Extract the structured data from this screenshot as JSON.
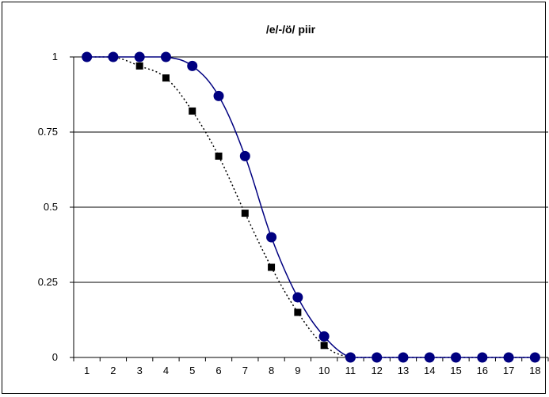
{
  "chart_data": {
    "type": "line",
    "title": "/e/-/ö/ piir",
    "xlabel": "",
    "ylabel": "",
    "categories": [
      "1",
      "2",
      "3",
      "4",
      "5",
      "6",
      "7",
      "8",
      "9",
      "10",
      "11",
      "12",
      "13",
      "14",
      "15",
      "16",
      "17",
      "18"
    ],
    "ylim": [
      0,
      1
    ],
    "yticks": [
      "0",
      "0.25",
      "0.5",
      "0.75",
      "1"
    ],
    "grid": "horizontal",
    "series": [
      {
        "marker": "circle",
        "line": "solid",
        "color": "#000080",
        "values": [
          1,
          1,
          1,
          1,
          0.97,
          0.87,
          0.67,
          0.4,
          0.2,
          0.07,
          0,
          0,
          0,
          0,
          0,
          0,
          0,
          0
        ]
      },
      {
        "marker": "square",
        "line": "dotted",
        "color": "#000000",
        "values": [
          1,
          1,
          0.97,
          0.93,
          0.82,
          0.67,
          0.48,
          0.3,
          0.15,
          0.04,
          0,
          0,
          0,
          0,
          0,
          0,
          0,
          0
        ]
      }
    ]
  }
}
